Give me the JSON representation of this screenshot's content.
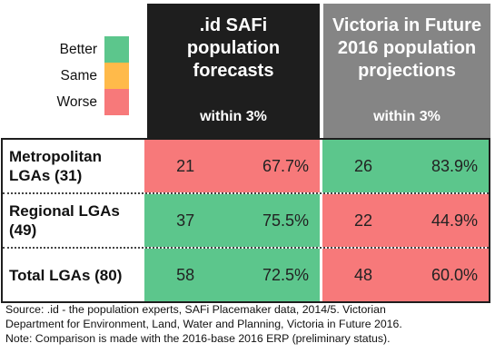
{
  "colors": {
    "better": "#5cc68c",
    "same": "#ffba4a",
    "worse": "#f7797a",
    "header_idsafi": "#1e1e1e",
    "header_vif": "#858585"
  },
  "legend": [
    {
      "label": "Better",
      "color": "better"
    },
    {
      "label": "Same",
      "color": "same"
    },
    {
      "label": "Worse",
      "color": "worse"
    }
  ],
  "headers": {
    "idsafi": {
      "title_lines": [
        ".id SAFi",
        "population",
        "forecasts"
      ],
      "subtitle": "within 3%"
    },
    "vif": {
      "title_lines": [
        "Victoria in Future",
        "2016 population",
        "projections"
      ],
      "subtitle": "within 3%"
    }
  },
  "chart_data": {
    "type": "table",
    "columns": [
      ".id SAFi population forecasts",
      "Victoria in Future 2016 population projections"
    ],
    "subheader": "within 3%",
    "rows": [
      {
        "label_lines": [
          "Metropolitan",
          "LGAs (31)"
        ],
        "idsafi": {
          "count": "21",
          "pct": "67.7%",
          "rating": "worse"
        },
        "vif": {
          "count": "26",
          "pct": "83.9%",
          "rating": "better"
        }
      },
      {
        "label_lines": [
          "Regional LGAs",
          "(49)"
        ],
        "idsafi": {
          "count": "37",
          "pct": "75.5%",
          "rating": "better"
        },
        "vif": {
          "count": "22",
          "pct": "44.9%",
          "rating": "worse"
        }
      },
      {
        "label_lines": [
          "Total LGAs (80)"
        ],
        "idsafi": {
          "count": "58",
          "pct": "72.5%",
          "rating": "better"
        },
        "vif": {
          "count": "48",
          "pct": "60.0%",
          "rating": "worse"
        }
      }
    ]
  },
  "source_lines": [
    "Source: .id - the population experts, SAFi Placemaker data, 2014/5. Victorian",
    "Department for Environment, Land, Water and Planning, Victoria in Future 2016.",
    "Note: Comparison is made with the 2016-base 2016 ERP (preliminary status)."
  ]
}
